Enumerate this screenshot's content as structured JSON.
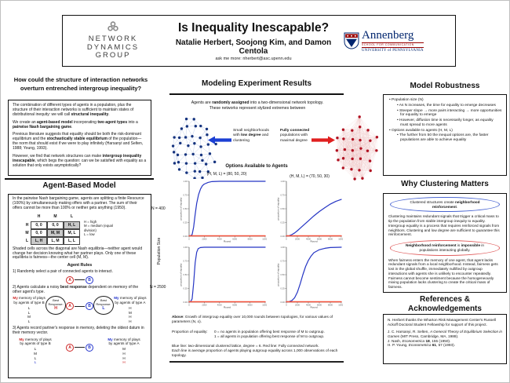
{
  "colors": {
    "arrow_blue": "#1b3fd4",
    "arrow_red": "#e01f1f",
    "chart_blue": "#2535c4",
    "chart_red": "#f4503a",
    "node_blue": "#15337e",
    "edge_blue": "#c3d0ec",
    "node_red": "#b01020",
    "edge_red": "#eec0c0",
    "letter_red": "#cc2222",
    "letter_blue": "#2233cc",
    "penn_blue": "#01256e",
    "penn_red": "#990000"
  },
  "header": {
    "ndg": {
      "lines": [
        "NETWORK",
        "DYNAMICS",
        "GROUP"
      ]
    },
    "title": "Is Inequality Inescapable?",
    "authors": "Natalie Herbert, Soojong Kim, and Damon Centola",
    "contact": "ask me more: nherbert@asc.upenn.edu",
    "penn": {
      "wordmark": "Annenberg",
      "school": "SCHOOL FOR COMMUNICATION",
      "university": "UNIVERSITY of PENNSYLVANIA"
    }
  },
  "left": {
    "question": "How could the structure of interaction networks\noverturn entrenched intergroup inequality?",
    "intro": {
      "p1": [
        {
          "t": "The combination of different types of agents in a population, plus the structure of their interaction networks is sufficient to maintain states of distributional inequity: we will call "
        },
        {
          "t": "structural inequality",
          "b": true
        },
        {
          "t": "."
        }
      ],
      "p2": [
        {
          "t": "We create an "
        },
        {
          "t": "agent-based model",
          "b": true
        },
        {
          "t": " incorporating "
        },
        {
          "t": "two agent types",
          "b": true
        },
        {
          "t": " into a "
        },
        {
          "t": "pairwise Nash bargaining game",
          "b": true
        },
        {
          "t": "."
        }
      ],
      "p3": [
        {
          "t": "Previous literature suggests that equality should be both the risk-dominant equilibrium and the "
        },
        {
          "t": "stochastically stable equilibrium",
          "b": true
        },
        {
          "t": " of the population—the norm that should exist if we were to play infinitely (Harsanyi and Selten, 1988; Young, 1993)."
        }
      ],
      "p4": [
        {
          "t": "However, we find that network structures can make "
        },
        {
          "t": "intergroup inequality inescapable",
          "b": true
        },
        {
          "t": ", which begs the question: can we be satisfied with equality as a solution that only exists asymptotically?"
        }
      ]
    },
    "abm": {
      "heading": "Agent-Based Model",
      "p1": [
        {
          "t": "In the pairwise Nash bargaining game, agents are splitting a finite Resource (100%) by simultaneously making offers with a partner. The sum of their offers cannot be more than 100% or neither gets anything (1950)."
        }
      ],
      "matrix": {
        "cols": [
          "H",
          "M",
          "L"
        ],
        "row_labels": [
          "H",
          "M",
          "L"
        ],
        "cells": [
          [
            "0, 0",
            "0, 0",
            "H, L"
          ],
          [
            "0, 0",
            "M, M",
            "M, L"
          ],
          [
            "L, H",
            "L, M",
            "L, L"
          ]
        ],
        "legend": [
          "H = high",
          "M = medium (equal division)",
          "L = low"
        ]
      },
      "p2": [
        {
          "t": "Shaded cells across the diagonal are Nash equilibria—neither agent would change her decision knowing what her partner plays. Only one of these equilibria is fairness—the center cell (M, M)."
        }
      ],
      "rules_heading": "Agent Rules",
      "rule1": "1) Randomly select a pair of connected agents to interact.",
      "rule2": [
        {
          "t": "2) Agents calculate a noisy "
        },
        {
          "t": "best response",
          "b": true
        },
        {
          "t": " dependent on memory of the other agent's type."
        }
      ],
      "rule3": "3) Agents record partner's response in memory, deleting the oldest datum in their memory vector.",
      "agents": {
        "a": "A",
        "b": "B"
      },
      "memory": {
        "label_left": [
          {
            "t": "My",
            "b": true,
            "c": "#cc2222"
          },
          {
            "t": " memory of plays\nby agents of type B"
          }
        ],
        "label_right": [
          {
            "t": "My",
            "b": true,
            "c": "#2233cc"
          },
          {
            "t": " memory of plays\nby agents of type A"
          }
        ],
        "rule2_left": [
          {
            "t": "L"
          },
          {
            "t": "L"
          },
          {
            "t": "M"
          },
          {
            "t": "L"
          }
        ],
        "rule2_right": [
          {
            "t": "H"
          },
          {
            "t": "M"
          },
          {
            "t": "H"
          },
          {
            "t": "H"
          }
        ],
        "rule3_left": [
          {
            "t": "L"
          },
          {
            "t": "M"
          },
          {
            "t": "L"
          },
          {
            "t": "L",
            "c": "#2233cc"
          }
        ],
        "rule3_right": [
          {
            "t": "M"
          },
          {
            "t": "H"
          },
          {
            "t": "H"
          },
          {
            "t": "H",
            "c": "#cc2222"
          }
        ],
        "bubble_left": {
          "label": "Best\nResponse:",
          "value": "H",
          "color": "#cc2222"
        },
        "bubble_right": {
          "label": "Best\nResponse:",
          "value": "L",
          "color": "#2233cc"
        }
      }
    }
  },
  "middle": {
    "heading": "Modeling Experiment Results",
    "intro": [
      {
        "t": "Agents are "
      },
      {
        "t": "randomly assigned",
        "b": true
      },
      {
        "t": " into a two-dimensional network topology.\nThese networks represent stylized extremes between"
      }
    ],
    "label_small": [
      {
        "t": "Small neighborhoods\nwith "
      },
      {
        "t": "low degree",
        "b": true
      },
      {
        "t": " and\nclustering"
      }
    ],
    "label_full": [
      {
        "t": "Fully connected",
        "b": true
      },
      {
        "t": "\npopulations with\nmaximal degree"
      }
    ],
    "options_heading": "Options Available to Agents",
    "row_labels": [
      "N = 400",
      "N = 2500"
    ],
    "axis_label": "Population Size",
    "notes": {
      "above": [
        {
          "t": "Above",
          "b": true
        },
        {
          "t": ": Growth of intergroup equality over 10,000 rounds between topologies, for various values of parameters (N, o)."
        }
      ],
      "prop_label": "Proportion of equality:",
      "prop_line0": "0 = no agents in population offering best response of M to outgroup.",
      "prop_line1": "1 = all agents in population offering best response of M to outgroup.",
      "lines_line0": "Blue line: two-dimensional clustered lattice, degree = 6. Red line: Fully connected network.",
      "lines_line1": "Each line is average proportion of agents playing outgroup equality across 1,000 observations of each topology."
    }
  },
  "right": {
    "robustness": {
      "heading": "Model Robustness",
      "items": [
        "Population size (N)",
        "As N increases, the time for equality to emerge decreases",
        "Steeper slope → more pairs interacting → more opportunities for equality to emerge",
        "However, diffusion time is necessarily longer, as equality must spread to more agents",
        "Options available to agents (H, M, L)",
        "The further from 50 the inequal options are, the faster populations are able to achieve equality"
      ]
    },
    "wcm": {
      "heading": "Why Clustering Matters",
      "oval1": [
        {
          "t": "Clustered structures create "
        },
        {
          "t": "neighborhood reinforcement",
          "b": true
        },
        {
          "t": "."
        }
      ],
      "para1": "Clustering maintains redundant signals that trigger a critical mass to tip the population from stable intergroup inequity to equality. Intergroup equality is a process that requires reinforced signals from neighbors. Clustering and low degree are sufficient to guarantee this reinforcement.",
      "oval2": [
        {
          "t": "Neighborhood reinforcement",
          "b": true
        },
        {
          "t": " is "
        },
        {
          "t": "impossible",
          "b": true
        },
        {
          "t": " in populations interacting globally."
        }
      ],
      "para2": "When fairness enters the memory of one agent, that agent lacks redundant signals from a local neighborhood. Instead, fairness gets lost in the global shuffle, immediately nullified by outgroup interactions with agents she is unlikely to encounter repeatedly. Fairness cannot become sentiment because the homogeneously mixing population lacks clustering to create the critical mass of fairness."
    },
    "refs": {
      "heading": "References &\nAcknowledgements",
      "ack": "N. Herbert thanks the Wharton Risk Management Center's Russell Ackoff Doctoral Student Fellowship for support of this project.",
      "r1": [
        {
          "t": "J. C. Harsanyi, R. Selten, "
        },
        {
          "t": "A General Theory of Equilibrium Selection in Games",
          "i": true
        },
        {
          "t": " (MIT Press, Cambridge, MA, 1988)."
        }
      ],
      "r2": [
        {
          "t": "J. Nash, "
        },
        {
          "t": "Econometrica",
          "i": true
        },
        {
          "t": " "
        },
        {
          "t": "18",
          "b": true
        },
        {
          "t": ", 155 (1950)."
        }
      ],
      "r3": [
        {
          "t": "H. P. Young, "
        },
        {
          "t": "Econometrica",
          "i": true
        },
        {
          "t": " "
        },
        {
          "t": "61",
          "b": true
        },
        {
          "t": ", 57 (1993)."
        }
      ]
    }
  },
  "networks": {
    "lattice": {
      "node_color": "#15337e",
      "edge_color": "#c3d0ec"
    },
    "full": {
      "node_color": "#b01020",
      "edge_color": "#eec0c0"
    }
  },
  "chart_data": [
    {
      "type": "line",
      "title": "(H, M, L) = (80, 50, 20)",
      "group": "N = 400",
      "xlabel": "Round",
      "ylabel": "proportion of equality",
      "xlim": [
        0,
        10000
      ],
      "ylim": [
        0,
        1
      ],
      "xticks": [
        0,
        2000,
        4000,
        6000,
        8000,
        10000
      ],
      "yticks": [
        0,
        0.25,
        0.5,
        0.75,
        1
      ],
      "grid": false,
      "series": [
        {
          "name": "two-dimensional clustered lattice (degree = 6)",
          "color": "#2535c4",
          "width": 1.2,
          "x": [
            0,
            200,
            400,
            600,
            800,
            1000,
            1250,
            1500,
            1750,
            2000,
            2500,
            3000,
            4000,
            6000,
            8000,
            10000
          ],
          "y": [
            0.01,
            0.01,
            0.03,
            0.17,
            0.4,
            0.6,
            0.76,
            0.86,
            0.92,
            0.95,
            0.98,
            0.995,
            1,
            1,
            1,
            1
          ]
        },
        {
          "name": "fully connected network",
          "color": "#f4503a",
          "width": 1.5,
          "x": [
            0,
            10000
          ],
          "y": [
            0.008,
            0.008
          ]
        }
      ]
    },
    {
      "type": "line",
      "title": "(H, M, L) = (70, 50, 30)",
      "group": "N = 400",
      "xlabel": "Round",
      "ylabel": "proportion of equality",
      "xlim": [
        0,
        10000
      ],
      "ylim": [
        0,
        1
      ],
      "xticks": [
        0,
        2000,
        4000,
        6000,
        8000,
        10000
      ],
      "yticks": [
        0,
        0.25,
        0.5,
        0.75,
        1
      ],
      "grid": false,
      "series": [
        {
          "name": "two-dimensional clustered lattice (degree = 6)",
          "color": "#2535c4",
          "width": 1.2,
          "x": [
            0,
            500,
            1000,
            1500,
            2000,
            2500,
            3000,
            4000,
            5000,
            6000,
            7000,
            8000,
            9000,
            10000
          ],
          "y": [
            0.005,
            0.01,
            0.03,
            0.06,
            0.1,
            0.145,
            0.19,
            0.28,
            0.37,
            0.45,
            0.52,
            0.585,
            0.635,
            0.67
          ]
        },
        {
          "name": "fully connected network",
          "color": "#f4503a",
          "width": 1.5,
          "x": [
            0,
            10000
          ],
          "y": [
            0.008,
            0.008
          ]
        }
      ]
    },
    {
      "type": "line",
      "title": "(H, M, L) = (80, 50, 20)",
      "group": "N = 2500",
      "xlabel": "Round",
      "ylabel": "proportion of equality",
      "xlim": [
        0,
        10000
      ],
      "ylim": [
        0,
        1
      ],
      "xticks": [
        0,
        2000,
        4000,
        6000,
        8000,
        10000
      ],
      "yticks": [
        0,
        0.25,
        0.5,
        0.75,
        1
      ],
      "grid": false,
      "series": [
        {
          "name": "two-dimensional clustered lattice (degree = 6)",
          "color": "#2535c4",
          "width": 1.2,
          "x": [
            0,
            200,
            400,
            600,
            800,
            1000,
            1200,
            1500,
            2000,
            10000
          ],
          "y": [
            0.005,
            0.01,
            0.06,
            0.35,
            0.72,
            0.91,
            0.975,
            0.995,
            1,
            1
          ]
        },
        {
          "name": "fully connected network",
          "color": "#f4503a",
          "width": 1.5,
          "x": [
            0,
            10000
          ],
          "y": [
            0.008,
            0.008
          ]
        }
      ]
    },
    {
      "type": "line",
      "title": "(H, M, L) = (70, 50, 30)",
      "group": "N = 2500",
      "xlabel": "Round",
      "ylabel": "proportion of equality",
      "xlim": [
        0,
        10000
      ],
      "ylim": [
        0,
        1
      ],
      "xticks": [
        0,
        2000,
        4000,
        6000,
        8000,
        10000
      ],
      "yticks": [
        0,
        0.25,
        0.5,
        0.75,
        1
      ],
      "grid": false,
      "series": [
        {
          "name": "two-dimensional clustered lattice (degree = 6)",
          "color": "#2535c4",
          "width": 1.2,
          "x": [
            0,
            500,
            1000,
            1500,
            2000,
            2500,
            3000,
            3500,
            4000,
            4500,
            5000,
            6000,
            7000,
            8000,
            10000
          ],
          "y": [
            0.005,
            0.01,
            0.03,
            0.08,
            0.18,
            0.33,
            0.5,
            0.65,
            0.76,
            0.84,
            0.9,
            0.955,
            0.98,
            0.995,
            1
          ]
        },
        {
          "name": "fully connected network",
          "color": "#f4503a",
          "width": 1.5,
          "x": [
            0,
            10000
          ],
          "y": [
            0.008,
            0.008
          ]
        }
      ]
    }
  ]
}
